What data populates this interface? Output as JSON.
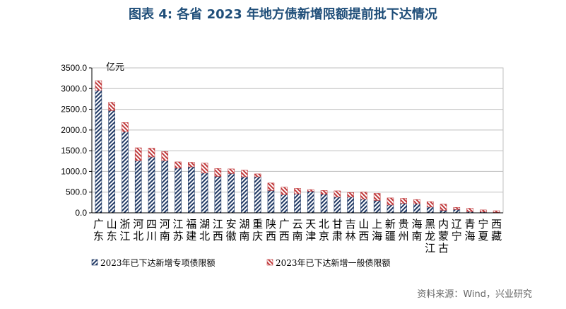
{
  "title": "图表 4:  各省 2023 年地方债新增限额提前批下达情况",
  "source": "资料来源：Wind，兴业研究",
  "colors": {
    "special": "#1f3864",
    "general": "#c0393b",
    "grid": "#bfbfbf"
  },
  "chart_data": {
    "type": "bar",
    "stacked": true,
    "unit": "亿元",
    "ylim": [
      0,
      3500
    ],
    "yticks": [
      "0.0",
      "500.0",
      "1000.0",
      "1500.0",
      "2000.0",
      "2500.0",
      "3000.0",
      "3500.0"
    ],
    "grid": true,
    "legend_position": "bottom-left",
    "categories": [
      "广东",
      "山东",
      "浙江",
      "河北",
      "四川",
      "河南",
      "江苏",
      "福建",
      "湖北",
      "江西",
      "安徽",
      "湖南",
      "重庆",
      "陕西",
      "广西",
      "云南",
      "天津",
      "北京",
      "甘肃",
      "吉林",
      "山西",
      "上海",
      "新疆",
      "贵州",
      "海南",
      "黑龙江",
      "内蒙古",
      "辽宁",
      "青海",
      "宁夏",
      "西藏"
    ],
    "category_lines": [
      [
        "广",
        "东"
      ],
      [
        "山",
        "东"
      ],
      [
        "浙",
        "江"
      ],
      [
        "河",
        "北"
      ],
      [
        "四",
        "川"
      ],
      [
        "河",
        "南"
      ],
      [
        "江",
        "苏"
      ],
      [
        "福",
        "建"
      ],
      [
        "湖",
        "北"
      ],
      [
        "江",
        "西"
      ],
      [
        "安",
        "徽"
      ],
      [
        "湖",
        "南"
      ],
      [
        "重",
        "庆"
      ],
      [
        "陕",
        "西"
      ],
      [
        "广",
        "西"
      ],
      [
        "云",
        "南"
      ],
      [
        "天",
        "津"
      ],
      [
        "北",
        "京"
      ],
      [
        "甘",
        "肃"
      ],
      [
        "吉",
        "林"
      ],
      [
        "山",
        "西"
      ],
      [
        "上",
        "海"
      ],
      [
        "新",
        "疆"
      ],
      [
        "贵",
        "州"
      ],
      [
        "海",
        "南"
      ],
      [
        "黑",
        "龙",
        "江"
      ],
      [
        "内",
        "蒙",
        "古"
      ],
      [
        "辽",
        "宁"
      ],
      [
        "青",
        "海"
      ],
      [
        "宁",
        "夏"
      ],
      [
        "西",
        "藏"
      ]
    ],
    "series": [
      {
        "name": "2023年已下达新增专项债限额",
        "values": [
          2960,
          2470,
          1960,
          1260,
          1350,
          1260,
          1080,
          1110,
          960,
          880,
          950,
          870,
          870,
          540,
          440,
          460,
          520,
          450,
          380,
          380,
          330,
          300,
          190,
          230,
          220,
          140,
          60,
          80,
          30,
          20,
          10
        ]
      },
      {
        "name": "2023年已下达新增一般债限额",
        "values": [
          230,
          200,
          220,
          310,
          210,
          220,
          150,
          110,
          240,
          190,
          110,
          160,
          70,
          180,
          180,
          130,
          40,
          90,
          150,
          110,
          170,
          170,
          170,
          120,
          100,
          130,
          150,
          50,
          80,
          50,
          40
        ]
      }
    ]
  }
}
